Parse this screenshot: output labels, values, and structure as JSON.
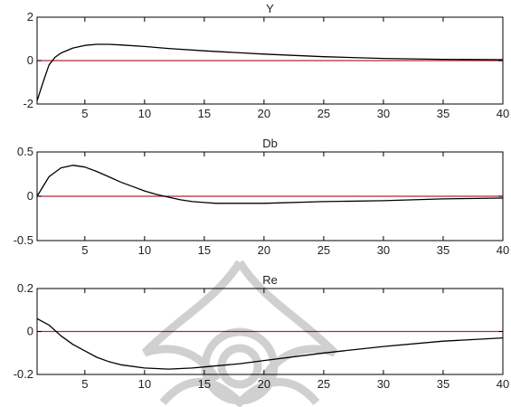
{
  "chart_data": [
    {
      "type": "line",
      "title": "Y",
      "xlim": [
        1,
        40
      ],
      "ylim": [
        -2,
        2
      ],
      "xticks": [
        5,
        10,
        15,
        20,
        25,
        30,
        35,
        40
      ],
      "yticks": [
        -2,
        0,
        2
      ],
      "ytick_labels": [
        "-2",
        "0",
        "2"
      ],
      "zero_line_color": "#b0283c",
      "series_color": "#000000",
      "series": [
        {
          "x": [
            1,
            1.5,
            2,
            2.5,
            3,
            4,
            5,
            6,
            7,
            8,
            10,
            12,
            15,
            18,
            20,
            25,
            30,
            35,
            40
          ],
          "values": [
            -1.85,
            -1.0,
            -0.2,
            0.15,
            0.35,
            0.58,
            0.7,
            0.75,
            0.75,
            0.72,
            0.65,
            0.56,
            0.45,
            0.36,
            0.3,
            0.18,
            0.1,
            0.06,
            0.04
          ]
        }
      ]
    },
    {
      "type": "line",
      "title": "Db",
      "xlim": [
        1,
        40
      ],
      "ylim": [
        -0.5,
        0.5
      ],
      "xticks": [
        5,
        10,
        15,
        20,
        25,
        30,
        35,
        40
      ],
      "yticks": [
        -0.5,
        0,
        0.5
      ],
      "ytick_labels": [
        "-0.5",
        "0",
        "0.5"
      ],
      "zero_line_color": "#b0283c",
      "series_color": "#000000",
      "series": [
        {
          "x": [
            1,
            2,
            3,
            4,
            5,
            6,
            7,
            8,
            9,
            10,
            11,
            12,
            13,
            14,
            15,
            16,
            18,
            20,
            25,
            30,
            35,
            40
          ],
          "values": [
            0.0,
            0.22,
            0.32,
            0.35,
            0.33,
            0.28,
            0.22,
            0.16,
            0.11,
            0.06,
            0.02,
            -0.01,
            -0.04,
            -0.06,
            -0.07,
            -0.08,
            -0.08,
            -0.08,
            -0.06,
            -0.05,
            -0.03,
            -0.02
          ]
        }
      ]
    },
    {
      "type": "line",
      "title": "Re",
      "xlim": [
        1,
        40
      ],
      "ylim": [
        -0.2,
        0.2
      ],
      "xticks": [
        5,
        10,
        15,
        20,
        25,
        30,
        35,
        40
      ],
      "yticks": [
        -0.2,
        0,
        0.2
      ],
      "ytick_labels": [
        "-0.2",
        "0",
        "0.2"
      ],
      "zero_line_color": "#b0283c",
      "series_color": "#000000",
      "series": [
        {
          "x": [
            1,
            2,
            3,
            4,
            5,
            6,
            7,
            8,
            10,
            12,
            14,
            15,
            18,
            20,
            25,
            30,
            35,
            40
          ],
          "values": [
            0.06,
            0.03,
            -0.02,
            -0.06,
            -0.09,
            -0.12,
            -0.14,
            -0.155,
            -0.17,
            -0.175,
            -0.17,
            -0.165,
            -0.15,
            -0.135,
            -0.1,
            -0.07,
            -0.045,
            -0.03
          ]
        }
      ]
    }
  ]
}
